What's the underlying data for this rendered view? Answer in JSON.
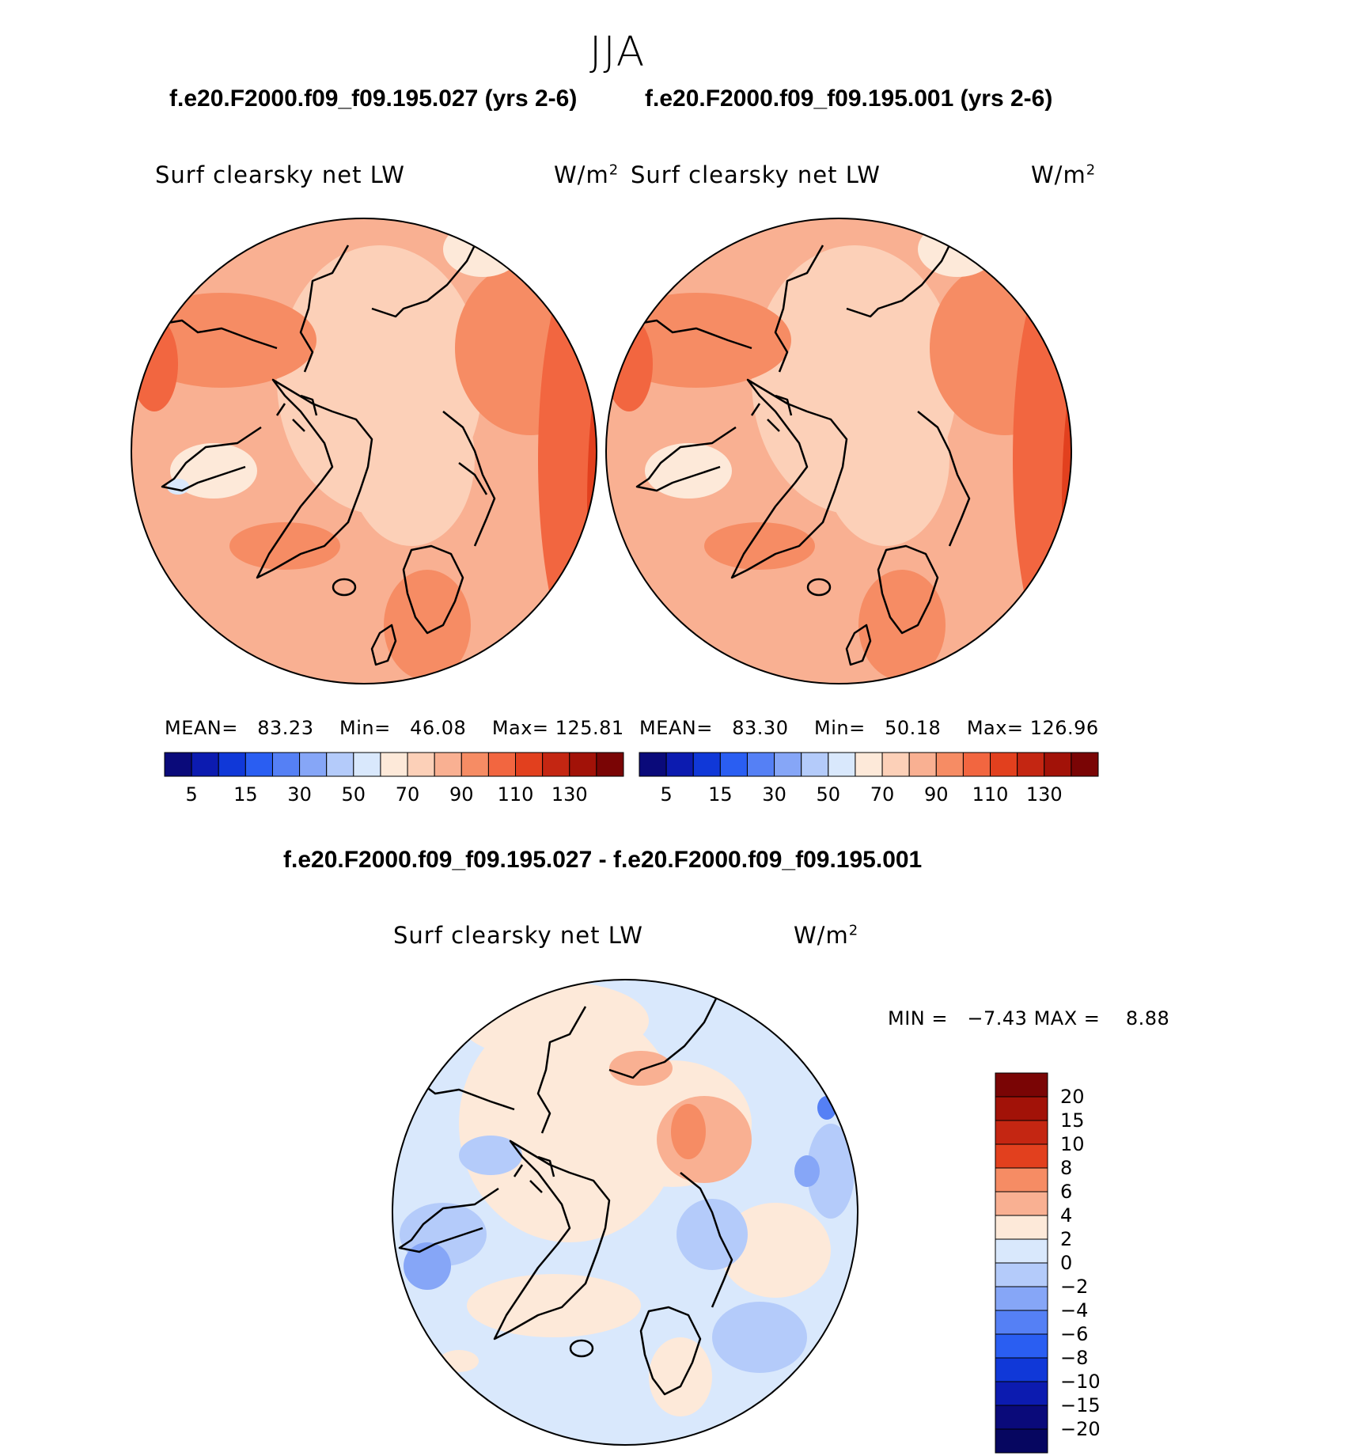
{
  "title": "JJA",
  "panels": [
    {
      "case_title": "f.e20.F2000.f09_f09.195.027 (yrs 2-6)",
      "variable": "Surf clearsky net LW",
      "units_base": "W/m",
      "units_exp": "2",
      "mean_label": "MEAN=",
      "mean_value": "83.23",
      "min_label": "Min=",
      "min_value": "46.08",
      "max_label": "Max=",
      "max_value": "125.81"
    },
    {
      "case_title": "f.e20.F2000.f09_f09.195.001 (yrs 2-6)",
      "variable": "Surf clearsky net LW",
      "units_base": "W/m",
      "units_exp": "2",
      "mean_label": "MEAN=",
      "mean_value": "83.30",
      "min_label": "Min=",
      "min_value": "50.18",
      "max_label": "Max=",
      "max_value": "126.96"
    }
  ],
  "colorbar_top": {
    "colors": [
      "#0a0a7a",
      "#0c1bb0",
      "#1038d8",
      "#2a5ef2",
      "#5580f5",
      "#86a6f7",
      "#b4cbfa",
      "#d9e8fc",
      "#fde9d9",
      "#fcd0b8",
      "#f9b092",
      "#f68c64",
      "#f26640",
      "#e2401e",
      "#c42612",
      "#a21208",
      "#7a0505"
    ],
    "ticks": [
      "5",
      "15",
      "30",
      "50",
      "70",
      "90",
      "110",
      "130"
    ]
  },
  "difference": {
    "title": "f.e20.F2000.f09_f09.195.027 - f.e20.F2000.f09_f09.195.001",
    "variable": "Surf clearsky net LW",
    "units_base": "W/m",
    "units_exp": "2",
    "min_label": "MIN =",
    "min_value": "−7.43",
    "max_label": "MAX =",
    "max_value": "8.88",
    "colorbar": {
      "colors": [
        "#7a0505",
        "#a21208",
        "#c42612",
        "#e2401e",
        "#f68c64",
        "#f9b092",
        "#fde9d9",
        "#d9e8fc",
        "#b4cbfa",
        "#86a6f7",
        "#5580f5",
        "#2a5ef2",
        "#1038d8",
        "#0c1bb0",
        "#0a0a7a",
        "#060660"
      ],
      "ticks": [
        "20",
        "15",
        "10",
        "8",
        "6",
        "4",
        "2",
        "0",
        "−2",
        "−4",
        "−6",
        "−8",
        "−10",
        "−15",
        "−20"
      ]
    }
  }
}
